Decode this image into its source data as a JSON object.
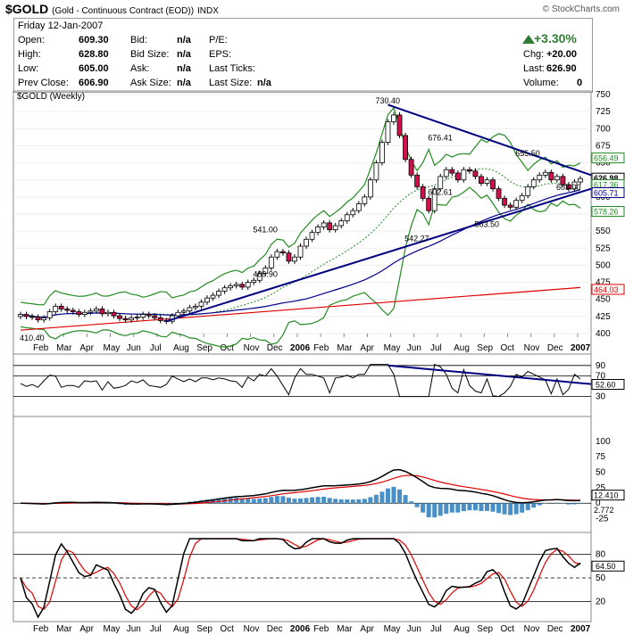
{
  "header": {
    "symbol": "$GOLD",
    "description": "(Gold - Continuous Contract (EOD))",
    "exchange": "INDX",
    "credit": "© StockCharts.com"
  },
  "quote": {
    "date": "Friday  12-Jan-2007",
    "open_label": "Open:",
    "open": "609.30",
    "high_label": "High:",
    "high": "628.80",
    "low_label": "Low:",
    "low": "605.00",
    "prev_label": "Prev Close:",
    "prev": "606.90",
    "bid_label": "Bid:",
    "bid": "n/a",
    "bidsize_label": "Bid Size:",
    "bidsize": "n/a",
    "ask_label": "Ask:",
    "ask": "n/a",
    "asksize_label": "Ask Size:",
    "asksize": "n/a",
    "pe_label": "P/E:",
    "eps_label": "EPS:",
    "lastticks_label": "Last Ticks:",
    "lastsize_label": "Last Size:",
    "lastsize": "n/a",
    "pct_change": "+3.30%",
    "chg_label": "Chg:",
    "chg": "+20.00",
    "last_label": "Last:",
    "last": "626.90",
    "volume_label": "Volume:",
    "volume": "0",
    "up_color": "#2e7d32"
  },
  "chart_data": [
    {
      "type": "candlestick",
      "title": "$GOLD (Weekly)",
      "ylim": [
        400,
        750
      ],
      "yticks": [
        "400",
        "425",
        "450",
        "475",
        "500",
        "525",
        "550",
        "575",
        "600",
        "625",
        "650",
        "675",
        "700",
        "725",
        "750"
      ],
      "xticks": [
        "Feb",
        "Mar",
        "Apr",
        "May",
        "Jun",
        "Jul",
        "Aug",
        "Sep",
        "Oct",
        "Nov",
        "Dec",
        "2006",
        "Feb",
        "Mar",
        "Apr",
        "May",
        "Jun",
        "Jul",
        "Aug",
        "Sep",
        "Oct",
        "Nov",
        "Dec",
        "2007"
      ],
      "close": [
        428,
        425,
        424,
        420,
        423,
        432,
        440,
        436,
        434,
        432,
        428,
        431,
        433,
        436,
        429,
        431,
        426,
        422,
        420,
        423,
        424,
        428,
        426,
        423,
        419,
        418,
        426,
        431,
        433,
        438,
        440,
        446,
        452,
        456,
        462,
        467,
        470,
        472,
        468,
        475,
        478,
        488,
        496,
        512,
        520,
        518,
        506,
        512,
        528,
        538,
        548,
        556,
        562,
        552,
        558,
        565,
        574,
        580,
        590,
        600,
        625,
        650,
        680,
        710,
        720,
        690,
        655,
        632,
        615,
        598,
        580,
        612,
        630,
        640,
        635,
        625,
        640,
        638,
        630,
        620,
        625,
        612,
        598,
        588,
        585,
        595,
        602,
        615,
        625,
        632,
        636,
        625,
        630,
        618,
        612,
        622,
        626.9
      ],
      "annotations": [
        "730.40",
        "676.41",
        "655.50",
        "541.00",
        "489.90",
        "542.27",
        "602.61",
        "563.50",
        "603.00",
        "410.40"
      ],
      "series": [
        {
          "name": "Upper Bollinger Band",
          "color": "#228b22"
        },
        {
          "name": "Lower Bollinger Band",
          "color": "#228b22"
        },
        {
          "name": "MA(20)",
          "color": "#228b22"
        },
        {
          "name": "MA(50)",
          "color": "#00008b"
        },
        {
          "name": "MA(200)",
          "color": "#e00000"
        }
      ],
      "right_labels": [
        "656.49",
        "626.98",
        "617.36",
        "605.71",
        "578.26",
        "464.03"
      ]
    },
    {
      "type": "line",
      "name": "RSI",
      "ylim": [
        0,
        100
      ],
      "yticks": [
        "30",
        "70",
        "90"
      ],
      "last_label": "52.60"
    },
    {
      "type": "line+bar",
      "name": "MACD",
      "ylim": [
        -40,
        130
      ],
      "yticks": [
        "-25",
        "0",
        "25",
        "50",
        "75",
        "100"
      ],
      "last_labels": [
        "12.410",
        "2.772"
      ]
    },
    {
      "type": "line",
      "name": "Stochastics",
      "ylim": [
        0,
        100
      ],
      "yticks": [
        "20",
        "50",
        "80"
      ],
      "last_label": "64.50"
    }
  ]
}
